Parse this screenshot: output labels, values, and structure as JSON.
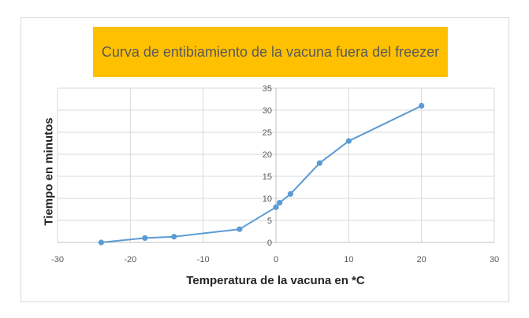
{
  "chart_data": {
    "type": "scatter",
    "title": "Curva de entibiamiento de la vacuna fuera del freezer",
    "xlabel": "Temperatura de la vacuna en *C",
    "ylabel": "Tiempo en minutos",
    "xlim": [
      -30,
      30
    ],
    "ylim": [
      0,
      35
    ],
    "xticks": [
      -30,
      -20,
      -10,
      0,
      10,
      20,
      30
    ],
    "yticks": [
      0,
      5,
      10,
      15,
      20,
      25,
      30,
      35
    ],
    "grid": true,
    "legend": "none",
    "series": [
      {
        "color": "#5b9bd5",
        "points": [
          {
            "x": -24,
            "y": 0
          },
          {
            "x": -18,
            "y": 1
          },
          {
            "x": -14,
            "y": 1.3
          },
          {
            "x": -5,
            "y": 3
          },
          {
            "x": 0,
            "y": 8
          },
          {
            "x": 0.5,
            "y": 9
          },
          {
            "x": 2,
            "y": 11
          },
          {
            "x": 6,
            "y": 18
          },
          {
            "x": 10,
            "y": 23
          },
          {
            "x": 20,
            "y": 31
          }
        ]
      }
    ]
  }
}
